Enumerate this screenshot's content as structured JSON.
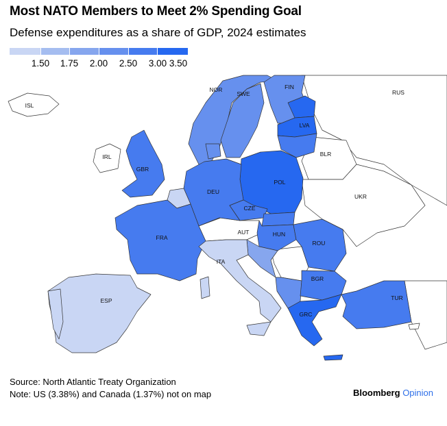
{
  "title": "Most NATO Members to Meet 2% Spending Goal",
  "subtitle": "Defense expenditures as a share of GDP, 2024 estimates",
  "legend": {
    "ticks": [
      "1.50",
      "1.75",
      "2.00",
      "2.50",
      "3.00",
      "3.50"
    ],
    "colors": [
      "#c9d6f4",
      "#a5bdf0",
      "#86a6ee",
      "#6690ee",
      "#467bef",
      "#2668f0"
    ]
  },
  "countries": {
    "ISL": "ISL",
    "NOR": "NOR",
    "SWE": "SWE",
    "FIN": "FIN",
    "RUS": "RUS",
    "LVA": "LVA",
    "BLR": "BLR",
    "IRL": "IRL",
    "GBR": "GBR",
    "POL": "POL",
    "DEU": "DEU",
    "UKR": "UKR",
    "CZE": "CZE",
    "FRA": "FRA",
    "AUT": "AUT",
    "HUN": "HUN",
    "ROU": "ROU",
    "ITA": "ITA",
    "BGR": "BGR",
    "ESP": "ESP",
    "TUR": "TUR",
    "GRC": "GRC"
  },
  "footer": {
    "source": "Source: North Atlantic Treaty Organization",
    "note": "Note: US (3.38%) and Canada (1.37%) not on map"
  },
  "brand": {
    "name": "Bloomberg",
    "suffix": "Opinion"
  }
}
